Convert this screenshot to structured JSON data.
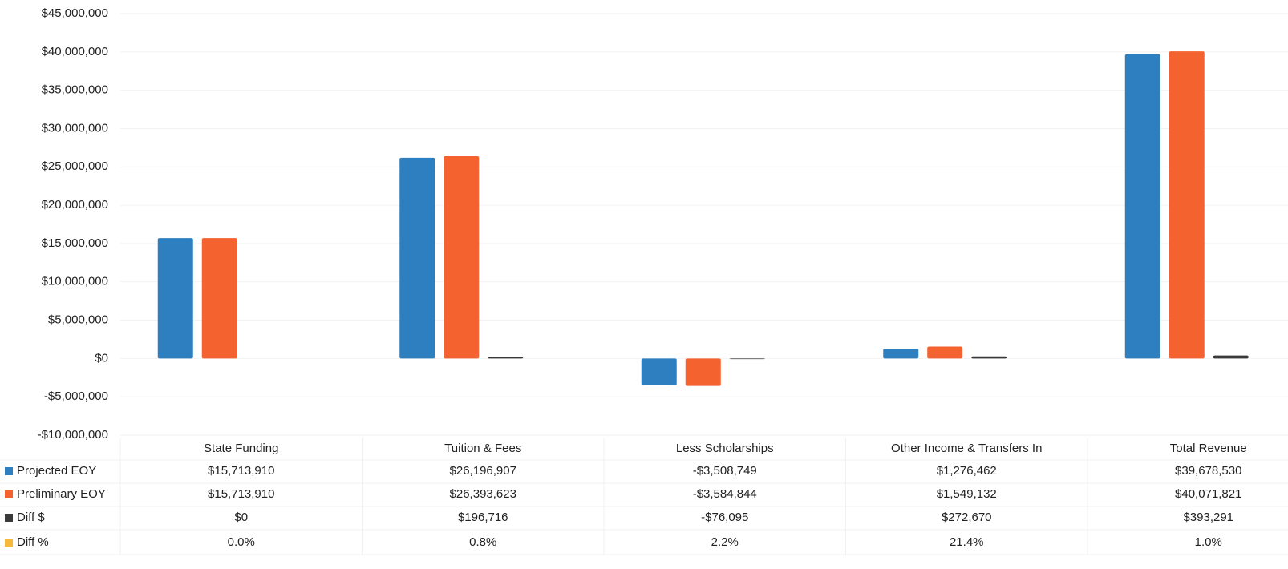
{
  "chart_data": {
    "type": "bar",
    "categories": [
      "State Funding",
      "Tuition & Fees",
      "Less Scholarships",
      "Other Income & Transfers In",
      "Total Revenue"
    ],
    "series": [
      {
        "name": "Projected EOY",
        "color": "#2e7fbf",
        "values": [
          15713910,
          26196907,
          -3508749,
          1276462,
          39678530
        ],
        "value_labels": [
          "$15,713,910",
          "$26,196,907",
          "-$3,508,749",
          "$1,276,462",
          "$39,678,530"
        ]
      },
      {
        "name": "Preliminary EOY",
        "color": "#f4622f",
        "values": [
          15713910,
          26393623,
          -3584844,
          1549132,
          40071821
        ],
        "value_labels": [
          "$15,713,910",
          "$26,393,623",
          "-$3,584,844",
          "$1,549,132",
          "$40,071,821"
        ]
      },
      {
        "name": "Diff $",
        "color": "#3a3a3a",
        "values": [
          0,
          196716,
          -76095,
          272670,
          393291
        ],
        "value_labels": [
          "$0",
          "$196,716",
          "-$76,095",
          "$272,670",
          "$393,291"
        ]
      },
      {
        "name": "Diff %",
        "color": "#f6b93b",
        "values": [
          0.0,
          0.8,
          2.2,
          21.4,
          1.0
        ],
        "value_labels": [
          "0.0%",
          "0.8%",
          "2.2%",
          "21.4%",
          "1.0%"
        ]
      }
    ],
    "ylim": [
      -10000000,
      45000000
    ],
    "yticks": [
      {
        "value": -10000000,
        "label": "-$10,000,000"
      },
      {
        "value": -5000000,
        "label": "-$5,000,000"
      },
      {
        "value": 0,
        "label": "$0"
      },
      {
        "value": 5000000,
        "label": "$5,000,000"
      },
      {
        "value": 10000000,
        "label": "$10,000,000"
      },
      {
        "value": 15000000,
        "label": "$15,000,000"
      },
      {
        "value": 20000000,
        "label": "$20,000,000"
      },
      {
        "value": 25000000,
        "label": "$25,000,000"
      },
      {
        "value": 30000000,
        "label": "$30,000,000"
      },
      {
        "value": 35000000,
        "label": "$35,000,000"
      },
      {
        "value": 40000000,
        "label": "$40,000,000"
      },
      {
        "value": 45000000,
        "label": "$45,000,000"
      }
    ],
    "grid": true
  }
}
